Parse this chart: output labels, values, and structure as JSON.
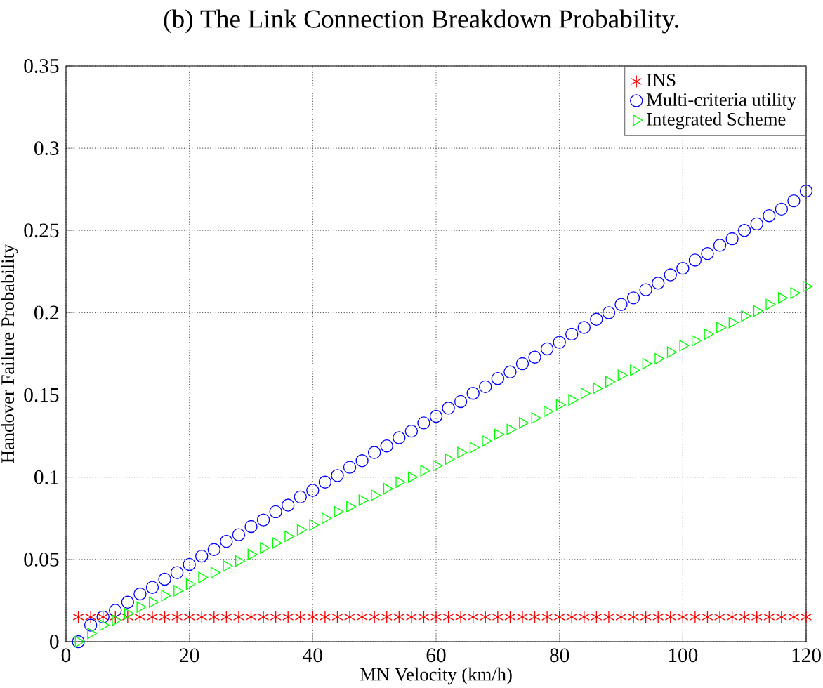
{
  "chart_data": {
    "type": "scatter",
    "title": "(b) The Link Connection Breakdown Probability.",
    "xlabel": "MN Velocity (km/h)",
    "ylabel": "Handover Failure Probability",
    "x": [
      2,
      4,
      6,
      8,
      10,
      12,
      14,
      16,
      18,
      20,
      22,
      24,
      26,
      28,
      30,
      32,
      34,
      36,
      38,
      40,
      42,
      44,
      46,
      48,
      50,
      52,
      54,
      56,
      58,
      60,
      62,
      64,
      66,
      68,
      70,
      72,
      74,
      76,
      78,
      80,
      82,
      84,
      86,
      88,
      90,
      92,
      94,
      96,
      98,
      100,
      102,
      104,
      106,
      108,
      110,
      112,
      114,
      116,
      118,
      120
    ],
    "series": [
      {
        "name": "INS",
        "color": "#ff0000",
        "marker": "cross",
        "values": [
          0.015,
          0.015,
          0.015,
          0.015,
          0.015,
          0.015,
          0.015,
          0.015,
          0.015,
          0.015,
          0.015,
          0.015,
          0.015,
          0.015,
          0.015,
          0.015,
          0.015,
          0.015,
          0.015,
          0.015,
          0.015,
          0.015,
          0.015,
          0.015,
          0.015,
          0.015,
          0.015,
          0.015,
          0.015,
          0.015,
          0.015,
          0.015,
          0.015,
          0.015,
          0.015,
          0.015,
          0.015,
          0.015,
          0.015,
          0.015,
          0.015,
          0.015,
          0.015,
          0.015,
          0.015,
          0.015,
          0.015,
          0.015,
          0.015,
          0.015,
          0.015,
          0.015,
          0.015,
          0.015,
          0.015,
          0.015,
          0.015,
          0.015,
          0.015,
          0.015
        ]
      },
      {
        "name": "Multi-criteria utility",
        "color": "#0000ff",
        "marker": "circle",
        "values": [
          0.0,
          0.01,
          0.015,
          0.019,
          0.024,
          0.029,
          0.033,
          0.038,
          0.042,
          0.047,
          0.052,
          0.056,
          0.061,
          0.065,
          0.07,
          0.074,
          0.079,
          0.083,
          0.088,
          0.092,
          0.097,
          0.101,
          0.106,
          0.11,
          0.115,
          0.119,
          0.124,
          0.128,
          0.133,
          0.137,
          0.142,
          0.146,
          0.151,
          0.155,
          0.16,
          0.164,
          0.169,
          0.173,
          0.178,
          0.182,
          0.187,
          0.191,
          0.196,
          0.2,
          0.205,
          0.209,
          0.214,
          0.218,
          0.223,
          0.227,
          0.232,
          0.236,
          0.241,
          0.245,
          0.25,
          0.254,
          0.259,
          0.263,
          0.268,
          0.274
        ]
      },
      {
        "name": "Integrated Scheme",
        "color": "#00ff00",
        "marker": "triangle",
        "values": [
          0.0,
          0.005,
          0.01,
          0.013,
          0.017,
          0.021,
          0.024,
          0.028,
          0.031,
          0.035,
          0.039,
          0.042,
          0.046,
          0.049,
          0.053,
          0.057,
          0.06,
          0.064,
          0.068,
          0.071,
          0.075,
          0.079,
          0.082,
          0.086,
          0.089,
          0.093,
          0.097,
          0.1,
          0.104,
          0.107,
          0.111,
          0.115,
          0.118,
          0.122,
          0.126,
          0.129,
          0.133,
          0.136,
          0.14,
          0.144,
          0.147,
          0.151,
          0.154,
          0.158,
          0.162,
          0.165,
          0.169,
          0.172,
          0.176,
          0.18,
          0.183,
          0.187,
          0.191,
          0.194,
          0.198,
          0.201,
          0.205,
          0.209,
          0.212,
          0.216
        ]
      }
    ],
    "xlim": [
      0,
      120
    ],
    "ylim": [
      0,
      0.35
    ],
    "xticks": [
      0,
      20,
      40,
      60,
      80,
      100,
      120
    ],
    "yticks": [
      0,
      0.05,
      0.1,
      0.15,
      0.2,
      0.25,
      0.3,
      0.35
    ],
    "grid": true,
    "legend": "top right"
  }
}
